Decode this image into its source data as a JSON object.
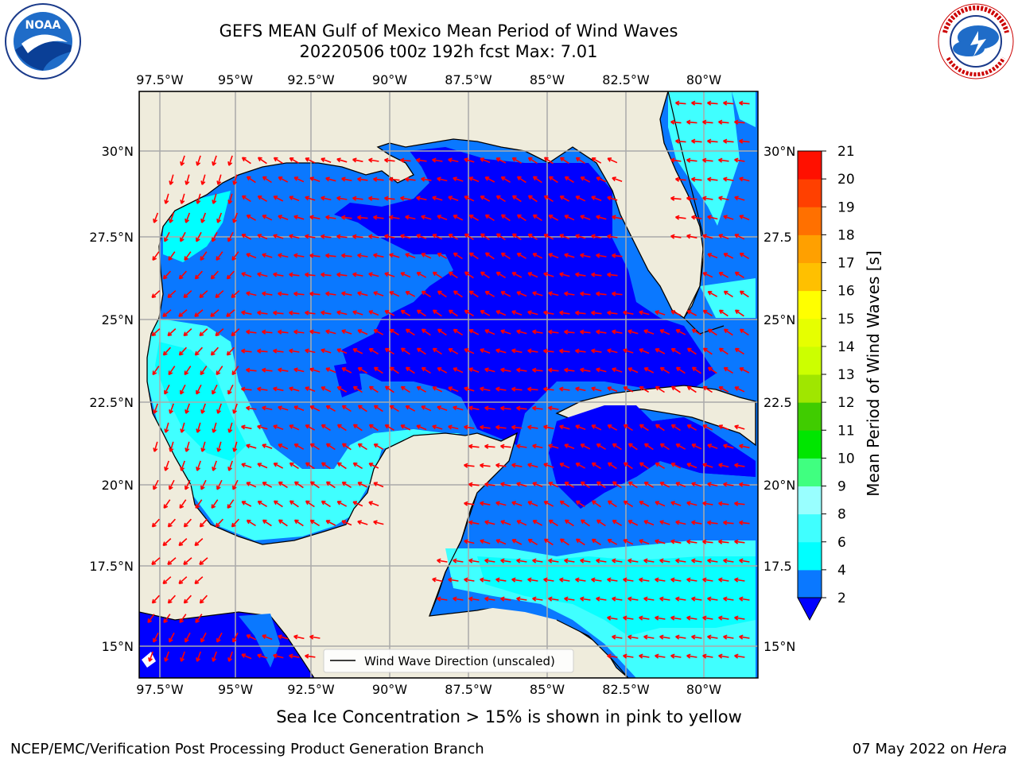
{
  "header": {
    "title_line1": "GEFS MEAN Gulf of Mexico Mean Period of Wind Waves",
    "title_line2": "20220506 t00z 192h fcst   Max: 7.01"
  },
  "map": {
    "lon_labels": [
      "97.5°W",
      "95°W",
      "92.5°W",
      "90°W",
      "87.5°W",
      "85°W",
      "82.5°W",
      "80°W"
    ],
    "lat_labels_left": [
      "30°N",
      "27.5°N",
      "25°N",
      "22.5°N",
      "20°N",
      "17.5°N",
      "15°N"
    ],
    "lat_labels_right": [
      "30°N",
      "27.5",
      "25°N",
      "22.5",
      "20°N",
      "17.5",
      "15°N"
    ],
    "legend_label": "Wind Wave Direction (unscaled)",
    "arrow_color": "#ff0000",
    "land_color": "#efecdc"
  },
  "colorbar": {
    "label": "Mean Period of Wind Waves [s]",
    "ticks": [
      "2",
      "4",
      "6",
      "8",
      "9",
      "10",
      "11",
      "12",
      "13",
      "14",
      "15",
      "16",
      "17",
      "18",
      "19",
      "20",
      "21"
    ],
    "colors": [
      "#0000ff",
      "#0a78ff",
      "#00ffff",
      "#40ffff",
      "#99ffff",
      "#40ff80",
      "#00e600",
      "#40cc00",
      "#a0e600",
      "#ccff00",
      "#e6ff00",
      "#ffff00",
      "#ffc000",
      "#ffa000",
      "#ff7000",
      "#ff4000",
      "#ff1000",
      "#ff0000"
    ]
  },
  "note": "Sea Ice Concentration > 15% is shown in pink to yellow",
  "footer": {
    "left": "NCEP/EMC/Verification Post Processing Product Generation Branch",
    "right_date": "07 May 2022 on ",
    "right_host": "Hera"
  },
  "logos": {
    "noaa": "NOAA",
    "noaa_ring": "NATIONAL OCEANIC AND ATMOSPHERIC ADMINISTRATION · U.S. DEPARTMENT OF COMMERCE",
    "nws_ring": "NATIONAL WEATHER SERVICE"
  }
}
